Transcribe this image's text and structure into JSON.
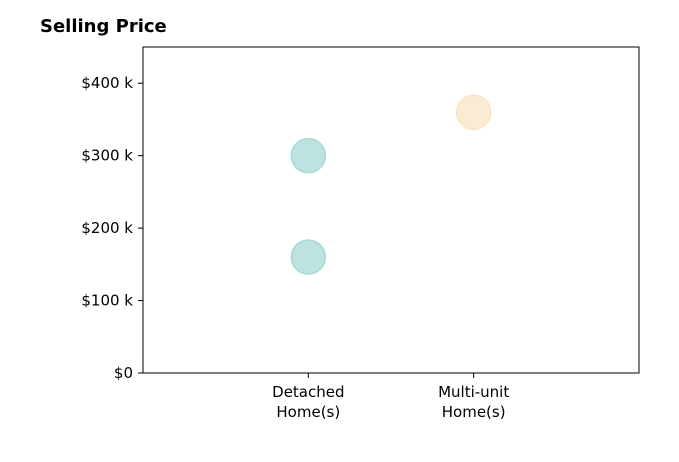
{
  "chart_data": {
    "type": "scatter",
    "title": "Selling Price",
    "categories": [
      "Detached\nHome(s)",
      "Multi-unit\nHome(s)"
    ],
    "y_ticks": [
      "$0",
      "$100 k",
      "$200 k",
      "$300 k",
      "$400 k"
    ],
    "y_tick_values": [
      0,
      100,
      200,
      300,
      400
    ],
    "ylim": [
      0,
      450
    ],
    "xlim": [
      -1,
      2
    ],
    "grid": false,
    "series": [
      {
        "color": "#a8d8d5",
        "points": [
          {
            "category": "Detached\nHome(s)",
            "value": 300
          },
          {
            "category": "Detached\nHome(s)",
            "value": 160
          }
        ]
      },
      {
        "color": "#f8e5c3",
        "points": [
          {
            "category": "Multi-unit\nHome(s)",
            "value": 360
          }
        ]
      }
    ]
  }
}
